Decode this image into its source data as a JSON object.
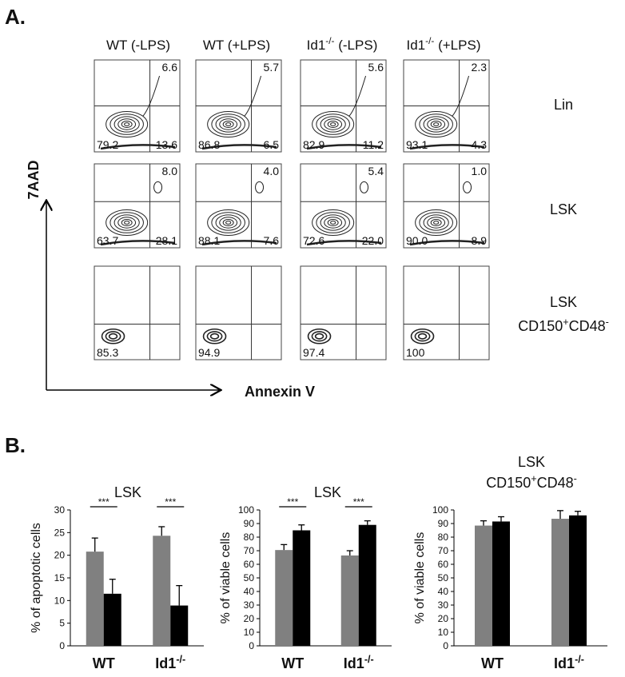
{
  "panel_a": {
    "label": "A.",
    "column_headers": [
      [
        {
          "t": "WT (-LPS)"
        }
      ],
      [
        {
          "t": "WT (+LPS)"
        }
      ],
      [
        {
          "t": "Id1"
        },
        {
          "t": "-/-",
          "sup": true
        },
        {
          "t": " (-LPS)"
        }
      ],
      [
        {
          "t": "Id1"
        },
        {
          "t": "-/-",
          "sup": true
        },
        {
          "t": " (+LPS)"
        }
      ]
    ],
    "row_labels": [
      [
        [
          {
            "t": "Lin"
          }
        ]
      ],
      [
        [
          {
            "t": "LSK"
          }
        ]
      ],
      [
        [
          {
            "t": "LSK"
          }
        ],
        [
          {
            "t": "CD150"
          },
          {
            "t": "+",
            "sup": true
          },
          {
            "t": "CD48"
          },
          {
            "t": "-",
            "sup": true
          }
        ]
      ]
    ],
    "y_axis_label": "7AAD",
    "x_axis_label": "Annexin V",
    "quadrants": [
      [
        {
          "ur": "6.6",
          "ll": "79.2",
          "lr": "13.6"
        },
        {
          "ur": "5.7",
          "ll": "86.8",
          "lr": "6.5"
        },
        {
          "ur": "5.6",
          "ll": "82.9",
          "lr": "11.2"
        },
        {
          "ur": "2.3",
          "ll": "93.1",
          "lr": "4.3"
        }
      ],
      [
        {
          "ur": "8.0",
          "ll": "63.7",
          "lr": "28.1"
        },
        {
          "ur": "4.0",
          "ll": "88.1",
          "lr": "7.6"
        },
        {
          "ur": "5.4",
          "ll": "72.6",
          "lr": "22.0"
        },
        {
          "ur": "1.0",
          "ll": "90.0",
          "lr": "8.9"
        }
      ],
      [
        {
          "ll": "85.3"
        },
        {
          "ll": "94.9"
        },
        {
          "ll": "97.4"
        },
        {
          "ll": "100"
        }
      ]
    ]
  },
  "panel_b_label": "B.",
  "chart_data": [
    {
      "type": "bar",
      "title": [
        [
          {
            "t": "LSK"
          }
        ]
      ],
      "y_label": "% of apoptotic cells",
      "categories": [
        [
          {
            "t": "WT"
          }
        ],
        [
          {
            "t": "Id1"
          },
          {
            "t": "-/-",
            "sup": true
          }
        ]
      ],
      "series": [
        {
          "color": "#808080",
          "values": [
            20.8,
            24.3
          ],
          "errors": [
            3.0,
            2.0
          ]
        },
        {
          "color": "#000000",
          "values": [
            11.5,
            8.9
          ],
          "errors": [
            3.2,
            4.4
          ]
        }
      ],
      "significance": [
        "***",
        "***"
      ],
      "ylim": [
        0,
        30
      ],
      "yticks": [
        0,
        5,
        10,
        15,
        20,
        25,
        30
      ]
    },
    {
      "type": "bar",
      "title": [
        [
          {
            "t": "LSK"
          }
        ]
      ],
      "y_label": "% of viable cells",
      "categories": [
        [
          {
            "t": "WT"
          }
        ],
        [
          {
            "t": "Id1"
          },
          {
            "t": "-/-",
            "sup": true
          }
        ]
      ],
      "series": [
        {
          "color": "#808080",
          "values": [
            70.5,
            66.5
          ],
          "errors": [
            4.0,
            3.5
          ]
        },
        {
          "color": "#000000",
          "values": [
            85,
            89
          ],
          "errors": [
            4.0,
            3.0
          ]
        }
      ],
      "significance": [
        "***",
        "***"
      ],
      "ylim": [
        0,
        100
      ],
      "yticks": [
        0,
        10,
        20,
        30,
        40,
        50,
        60,
        70,
        80,
        90,
        100
      ]
    },
    {
      "type": "bar",
      "title": [
        [
          {
            "t": "LSK"
          }
        ],
        [
          {
            "t": "CD150"
          },
          {
            "t": "+",
            "sup": true
          },
          {
            "t": "CD48"
          },
          {
            "t": "-",
            "sup": true
          }
        ]
      ],
      "y_label": "% of viable cells",
      "categories": [
        [
          {
            "t": "WT"
          }
        ],
        [
          {
            "t": "Id1"
          },
          {
            "t": "-/-",
            "sup": true
          }
        ]
      ],
      "series": [
        {
          "color": "#808080",
          "values": [
            88.5,
            93.5
          ],
          "errors": [
            3.5,
            6.0
          ]
        },
        {
          "color": "#000000",
          "values": [
            91.5,
            96
          ],
          "errors": [
            3.5,
            3.0
          ]
        }
      ],
      "ylim": [
        0,
        100
      ],
      "yticks": [
        0,
        10,
        20,
        30,
        40,
        50,
        60,
        70,
        80,
        90,
        100
      ]
    }
  ]
}
